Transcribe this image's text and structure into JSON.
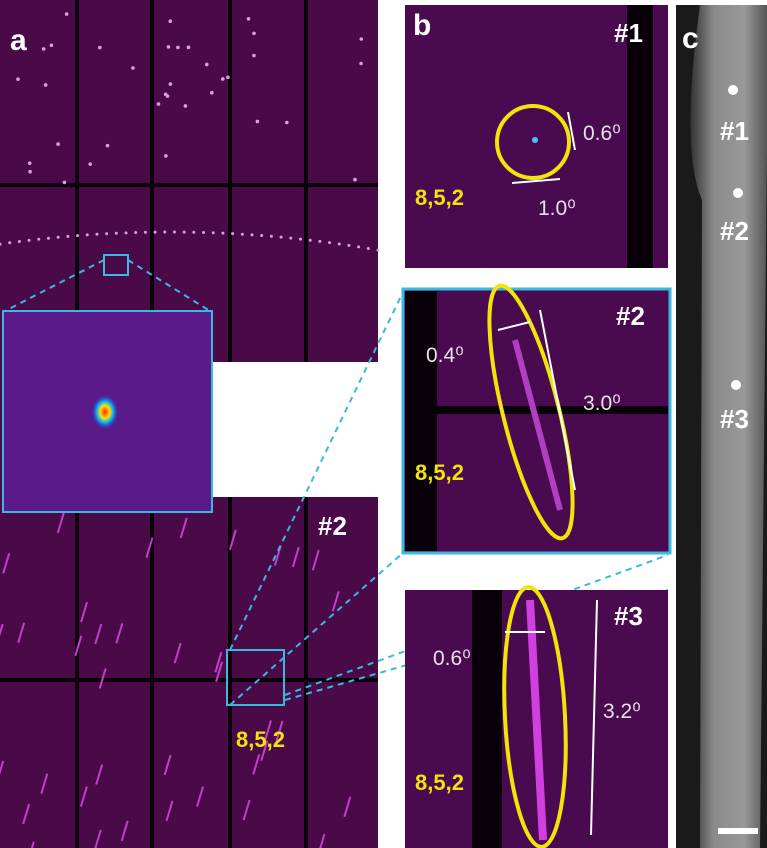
{
  "panel_a": {
    "label": "a",
    "zoom_label": "#2",
    "reflection": "8,5,2"
  },
  "panel_b": {
    "label": "b",
    "subpanels": [
      {
        "label": "#1",
        "reflection": "8,5,2",
        "widths": [
          "0.6⁰",
          "1.0⁰"
        ]
      },
      {
        "label": "#2",
        "reflection": "8,5,2",
        "widths": [
          "0.4⁰",
          "3.0⁰"
        ]
      },
      {
        "label": "#3",
        "reflection": "8,5,2",
        "widths": [
          "0.6⁰",
          "3.2⁰"
        ]
      }
    ]
  },
  "panel_c": {
    "label": "c",
    "points": [
      "#1",
      "#2",
      "#3"
    ]
  }
}
